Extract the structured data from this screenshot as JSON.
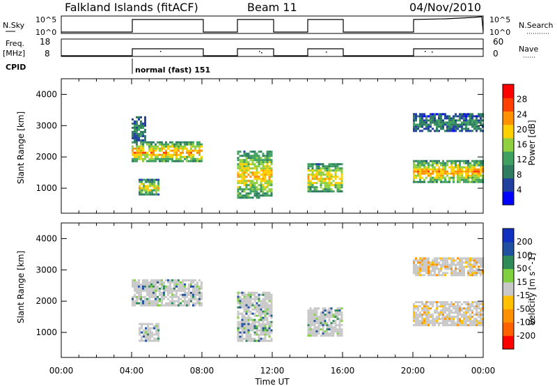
{
  "header": {
    "station": "Falkland Islands (fitACF)",
    "beam": "Beam 11",
    "date": "04/Nov/2010"
  },
  "small_panels": {
    "nsky_label": "N.Sky",
    "nsky_ticks": [
      "10^5",
      "10^0"
    ],
    "nsearch_label": "N.Search",
    "nsearch_ticks": [
      "10^5",
      "10^0"
    ],
    "freq_label_line1": "Freq.",
    "freq_label_line2": "[MHz]",
    "freq_ticks": [
      "18",
      "8"
    ],
    "nave_label": "Nave",
    "nave_ticks": [
      "60",
      "0"
    ],
    "cpid_label": "CPID",
    "cpid_text": "normal (fast) 151"
  },
  "colors": {
    "power_scale": [
      "#0000ff",
      "#2040a0",
      "#2e7d60",
      "#40a060",
      "#90d040",
      "#ffd000",
      "#ff9000",
      "#ff4000",
      "#ff0000"
    ],
    "velocity_scale": [
      "#ff0000",
      "#ff6000",
      "#ff9000",
      "#ffc000",
      "#c8c8c8",
      "#80d040",
      "#2e8b57",
      "#2050a0",
      "#1030c0"
    ],
    "ground_scatter": "#c8c8c8"
  },
  "chart_data": [
    {
      "type": "heatmap",
      "name": "power-panel",
      "ylabel": "Slant Range [km]",
      "xlim": [
        "00:00",
        "24:00"
      ],
      "ylim": [
        200,
        4500
      ],
      "y_ticks": [
        1000,
        2000,
        3000,
        4000
      ],
      "colorbar_label": "Power [dB]",
      "colorbar_ticks": [
        "4",
        "8",
        "12",
        "16",
        "20",
        "24",
        "28"
      ],
      "colorbar_range": [
        0,
        32
      ],
      "scatter_regions": [
        {
          "t_start": 4.0,
          "t_end": 8.0,
          "range_low": 1850,
          "range_high": 2500,
          "level_db": 24
        },
        {
          "t_start": 4.0,
          "t_end": 4.8,
          "range_low": 2500,
          "range_high": 3300,
          "level_db": 10
        },
        {
          "t_start": 4.4,
          "t_end": 5.5,
          "range_low": 800,
          "range_high": 1300,
          "level_db": 20
        },
        {
          "t_start": 10.0,
          "t_end": 12.0,
          "range_low": 700,
          "range_high": 2200,
          "level_db": 22
        },
        {
          "t_start": 14.0,
          "t_end": 16.0,
          "range_low": 900,
          "range_high": 1800,
          "level_db": 22
        },
        {
          "t_start": 20.0,
          "t_end": 24.0,
          "range_low": 1200,
          "range_high": 1900,
          "level_db": 24
        },
        {
          "t_start": 20.0,
          "t_end": 24.0,
          "range_low": 2800,
          "range_high": 3400,
          "level_db": 10
        }
      ]
    },
    {
      "type": "heatmap",
      "name": "velocity-panel",
      "ylabel": "Slant Range [km]",
      "xlabel": "Time UT",
      "x_ticks": [
        "00:00",
        "04:00",
        "08:00",
        "12:00",
        "16:00",
        "20:00",
        "00:00"
      ],
      "xlim": [
        "00:00",
        "24:00"
      ],
      "ylim": [
        200,
        4500
      ],
      "y_ticks": [
        1000,
        2000,
        3000,
        4000
      ],
      "colorbar_label": "Velocity [m s^-1]",
      "colorbar_ticks": [
        "200",
        "100",
        "50",
        "15",
        "-15",
        "-50",
        "-100",
        "-200"
      ],
      "scatter_regions": [
        {
          "t_start": 4.0,
          "t_end": 8.0,
          "range_low": 1850,
          "range_high": 2700,
          "velocity_ms": 0
        },
        {
          "t_start": 4.4,
          "t_end": 5.5,
          "range_low": 700,
          "range_high": 1300,
          "velocity_ms": 0
        },
        {
          "t_start": 10.0,
          "t_end": 12.0,
          "range_low": 700,
          "range_high": 2300,
          "velocity_ms": 0
        },
        {
          "t_start": 14.0,
          "t_end": 16.0,
          "range_low": 900,
          "range_high": 1800,
          "velocity_ms": 0
        },
        {
          "t_start": 20.0,
          "t_end": 24.0,
          "range_low": 1200,
          "range_high": 2000,
          "velocity_ms": -20
        },
        {
          "t_start": 20.0,
          "t_end": 24.0,
          "range_low": 2800,
          "range_high": 3400,
          "velocity_ms": -40
        }
      ]
    }
  ]
}
